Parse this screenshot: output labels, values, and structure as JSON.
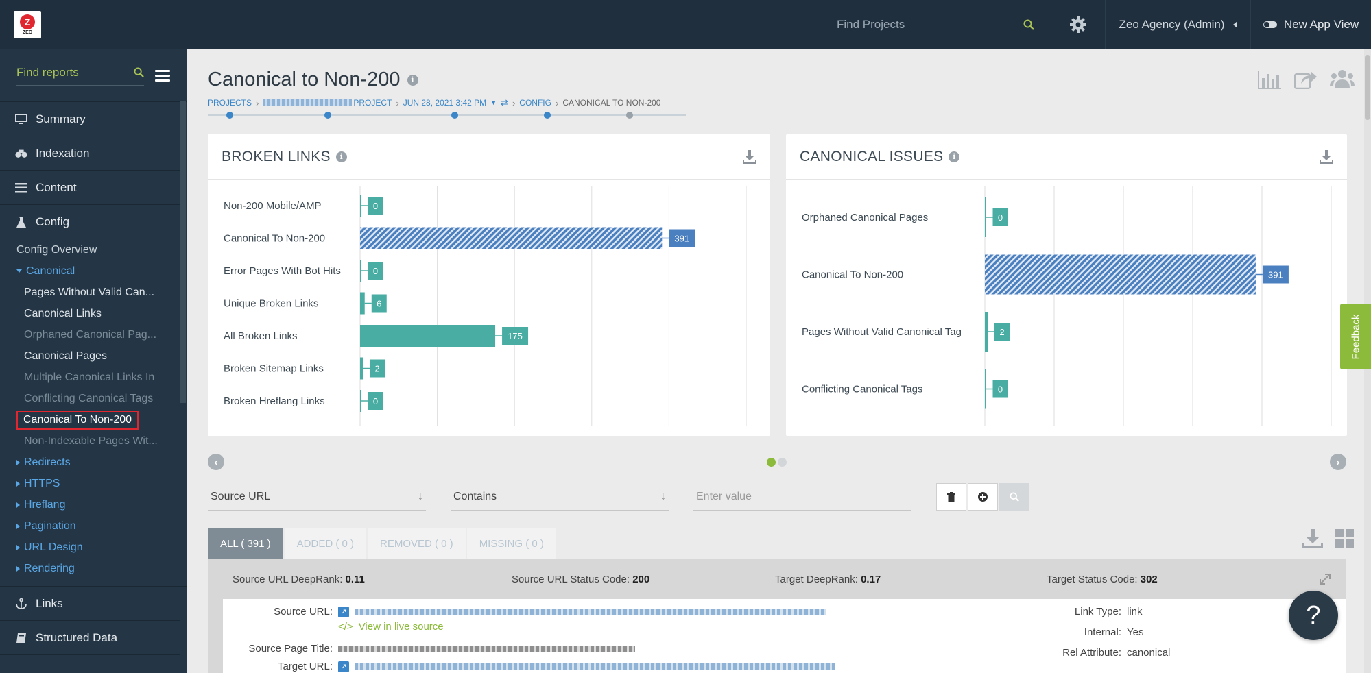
{
  "top": {
    "logo_text": "ZEO",
    "search_placeholder": "Find Projects",
    "agency": "Zeo Agency (Admin)",
    "new_app_view": "New App View"
  },
  "sidebar": {
    "search_placeholder": "Find reports",
    "nav": [
      {
        "label": "Summary",
        "icon": "monitor-icon"
      },
      {
        "label": "Indexation",
        "icon": "binoculars-icon"
      },
      {
        "label": "Content",
        "icon": "list-icon"
      },
      {
        "label": "Config",
        "icon": "flask-icon"
      }
    ],
    "config_overview": "Config Overview",
    "canonical": "Canonical",
    "canonical_items": [
      {
        "label": "Pages Without Valid Can...",
        "dim": false
      },
      {
        "label": "Canonical Links",
        "dim": false
      },
      {
        "label": "Orphaned Canonical Pag...",
        "dim": true
      },
      {
        "label": "Canonical Pages",
        "dim": false
      },
      {
        "label": "Multiple Canonical Links In",
        "dim": true
      },
      {
        "label": "Conflicting Canonical Tags",
        "dim": true
      },
      {
        "label": "Canonical To Non-200",
        "dim": false,
        "selected": true
      },
      {
        "label": "Non-Indexable Pages Wit...",
        "dim": true
      }
    ],
    "groups": [
      "Redirects",
      "HTTPS",
      "Hreflang",
      "Pagination",
      "URL Design",
      "Rendering"
    ],
    "bottom_nav": [
      {
        "label": "Links",
        "icon": "anchor-icon"
      },
      {
        "label": "Structured Data",
        "icon": "book-icon"
      }
    ]
  },
  "page": {
    "title": "Canonical to Non-200",
    "breadcrumb": {
      "projects": "PROJECTS",
      "project": "PROJECT",
      "date": "JUN 28, 2021 3:42 PM",
      "config": "CONFIG",
      "current": "CANONICAL TO NON-200"
    }
  },
  "panels": {
    "broken_links_title": "BROKEN LINKS",
    "canonical_issues_title": "CANONICAL ISSUES"
  },
  "chart_data": [
    {
      "type": "bar",
      "orientation": "horizontal",
      "title": "BROKEN LINKS",
      "categories": [
        "Non-200 Mobile/AMP",
        "Canonical To Non-200",
        "Error Pages With Bot Hits",
        "Unique Broken Links",
        "All Broken Links",
        "Broken Sitemap Links",
        "Broken Hreflang Links"
      ],
      "values": [
        0,
        391,
        0,
        6,
        175,
        2,
        0
      ],
      "highlight": "Canonical To Non-200",
      "xlim": [
        0,
        500
      ],
      "grid": true,
      "colors": {
        "bar": "#4aada3",
        "highlight": "#4a7fc0"
      }
    },
    {
      "type": "bar",
      "orientation": "horizontal",
      "title": "CANONICAL ISSUES",
      "categories": [
        "Orphaned Canonical Pages",
        "Canonical To Non-200",
        "Pages Without Valid Canonical Tag",
        "Conflicting Canonical Tags"
      ],
      "values": [
        0,
        391,
        2,
        0
      ],
      "highlight": "Canonical To Non-200",
      "xlim": [
        0,
        500
      ],
      "grid": true,
      "colors": {
        "bar": "#4aada3",
        "highlight": "#4a7fc0"
      }
    }
  ],
  "filter": {
    "field": "Source URL",
    "operator": "Contains",
    "value_placeholder": "Enter value"
  },
  "tabs": [
    {
      "label": "ALL ( 391 )",
      "active": true
    },
    {
      "label": "ADDED ( 0 )",
      "active": false
    },
    {
      "label": "REMOVED ( 0 )",
      "active": false
    },
    {
      "label": "MISSING ( 0 )",
      "active": false
    }
  ],
  "result": {
    "source_deeprank_label": "Source URL DeepRank:",
    "source_deeprank": "0.11",
    "source_status_label": "Source URL Status Code:",
    "source_status": "200",
    "target_deeprank_label": "Target DeepRank:",
    "target_deeprank": "0.17",
    "target_status_label": "Target Status Code:",
    "target_status": "302",
    "source_url_label": "Source URL:",
    "view_live": "View in live source",
    "source_title_label": "Source Page Title:",
    "target_url_label": "Target URL:",
    "link_type_label": "Link Type:",
    "link_type": "link",
    "internal_label": "Internal:",
    "internal": "Yes",
    "rel_label": "Rel Attribute:",
    "rel": "canonical"
  },
  "feedback": "Feedback",
  "help": "?"
}
